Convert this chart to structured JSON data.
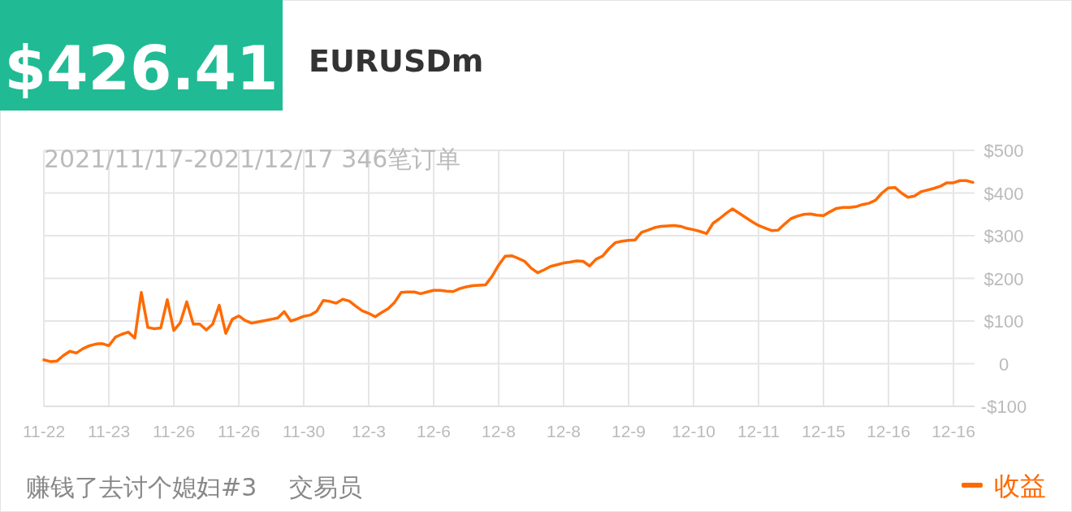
{
  "chart_data": {
    "type": "line",
    "title": "$426.41",
    "subtitle": "EURUSDm",
    "annotations": [
      "2021/11/17-2021/12/17 346笔订单",
      "赚钱了去讨个媳妇#3",
      "交易员"
    ],
    "categories": [
      "11-22",
      null,
      null,
      null,
      null,
      null,
      null,
      null,
      null,
      null,
      "11-23",
      null,
      null,
      null,
      null,
      null,
      null,
      null,
      null,
      null,
      "11-26",
      null,
      null,
      null,
      null,
      null,
      null,
      null,
      null,
      null,
      "11-26",
      null,
      null,
      null,
      null,
      null,
      null,
      null,
      null,
      null,
      "11-30",
      null,
      null,
      null,
      null,
      null,
      null,
      null,
      null,
      null,
      "12-3",
      null,
      null,
      null,
      null,
      null,
      null,
      null,
      null,
      null,
      "12-6",
      null,
      null,
      null,
      null,
      null,
      null,
      null,
      null,
      null,
      "12-8",
      null,
      null,
      null,
      null,
      null,
      null,
      null,
      null,
      null,
      "12-8",
      null,
      null,
      null,
      null,
      null,
      null,
      null,
      null,
      null,
      "12-9",
      null,
      null,
      null,
      null,
      null,
      null,
      null,
      null,
      null,
      "12-10",
      null,
      null,
      null,
      null,
      null,
      null,
      null,
      null,
      null,
      "12-11",
      null,
      null,
      null,
      null,
      null,
      null,
      null,
      null,
      null,
      "12-15",
      null,
      null,
      null,
      null,
      null,
      null,
      null,
      null,
      null,
      "12-16",
      null,
      null,
      null,
      null,
      null,
      null,
      null,
      null,
      null,
      "12-16",
      null,
      null,
      null
    ],
    "ylim": [
      -100,
      500
    ],
    "yticks": [
      {
        "value": -100,
        "label": "-$100"
      },
      0,
      {
        "value": 100,
        "label": "$100"
      },
      {
        "value": 200,
        "label": "$200"
      },
      {
        "value": 300,
        "label": "$300"
      },
      {
        "value": 400,
        "label": "$400"
      },
      {
        "value": 500,
        "label": "$500"
      }
    ],
    "grid": true,
    "legend": "bottom right",
    "marker": "none",
    "line_style": "solid",
    "series": [
      {
        "name": "收益",
        "color": "#ff6a00",
        "values": [
          9,
          5,
          6,
          19,
          29,
          25,
          35,
          42,
          46,
          47,
          42,
          62,
          69,
          74,
          60,
          167,
          85,
          82,
          84,
          150,
          78,
          96,
          145,
          93,
          93,
          79,
          93,
          137,
          71,
          104,
          112,
          101,
          95,
          98,
          101,
          104,
          107,
          122,
          100,
          105,
          111,
          114,
          123,
          148,
          146,
          142,
          151,
          147,
          135,
          124,
          118,
          110,
          120,
          129,
          144,
          167,
          168,
          168,
          164,
          168,
          172,
          172,
          170,
          169,
          176,
          180,
          183,
          184,
          185,
          205,
          231,
          252,
          253,
          247,
          240,
          224,
          213,
          220,
          228,
          232,
          236,
          238,
          241,
          240,
          229,
          245,
          252,
          270,
          284,
          287,
          289,
          290,
          308,
          313,
          319,
          322,
          323,
          324,
          322,
          317,
          314,
          310,
          305,
          329,
          340,
          352,
          363,
          353,
          343,
          333,
          324,
          318,
          312,
          313,
          327,
          340,
          346,
          350,
          351,
          348,
          347,
          356,
          364,
          366,
          366,
          368,
          373,
          376,
          383,
          400,
          412,
          413,
          400,
          390,
          393,
          403,
          407,
          411,
          416,
          424,
          424,
          429,
          429,
          425
        ]
      }
    ]
  }
}
